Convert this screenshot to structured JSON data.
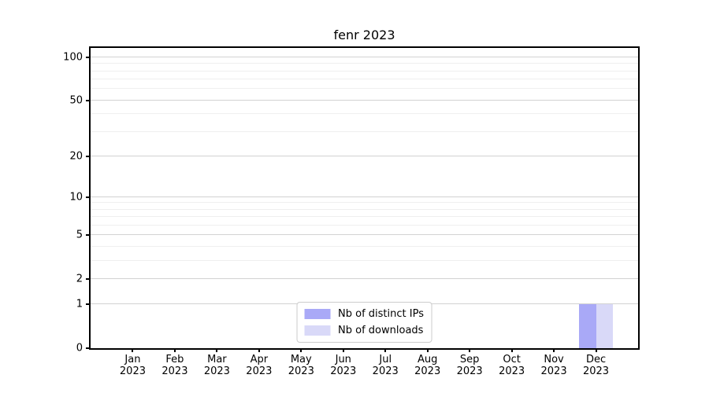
{
  "chart_data": {
    "type": "bar",
    "title": "fenr 2023",
    "categories": [
      "Jan 2023",
      "Feb 2023",
      "Mar 2023",
      "Apr 2023",
      "May 2023",
      "Jun 2023",
      "Jul 2023",
      "Aug 2023",
      "Sep 2023",
      "Oct 2023",
      "Nov 2023",
      "Dec 2023"
    ],
    "series": [
      {
        "name": "Nb of distinct IPs",
        "color": "#a9a9f7",
        "values": [
          0,
          0,
          0,
          0,
          0,
          0,
          0,
          0,
          0,
          0,
          0,
          1
        ]
      },
      {
        "name": "Nb of downloads",
        "color": "#d9d9f8",
        "values": [
          0,
          0,
          0,
          0,
          0,
          0,
          0,
          0,
          0,
          0,
          0,
          1
        ]
      }
    ],
    "xlabel": "",
    "ylabel": "",
    "yscale": "log1p",
    "ylim": [
      0,
      116
    ],
    "y_major_ticks": [
      0,
      1,
      2,
      5,
      10,
      20,
      50,
      100
    ],
    "y_minor_ticks": [
      3,
      4,
      6,
      7,
      8,
      9,
      30,
      40,
      60,
      70,
      80,
      90
    ],
    "grid": true,
    "legend_position": "lower center",
    "colors": {
      "axis": "#000000",
      "grid_major": "#d2d2d2",
      "grid_minor": "#efefef",
      "legend_border": "#cccccc",
      "background": "#ffffff"
    }
  }
}
